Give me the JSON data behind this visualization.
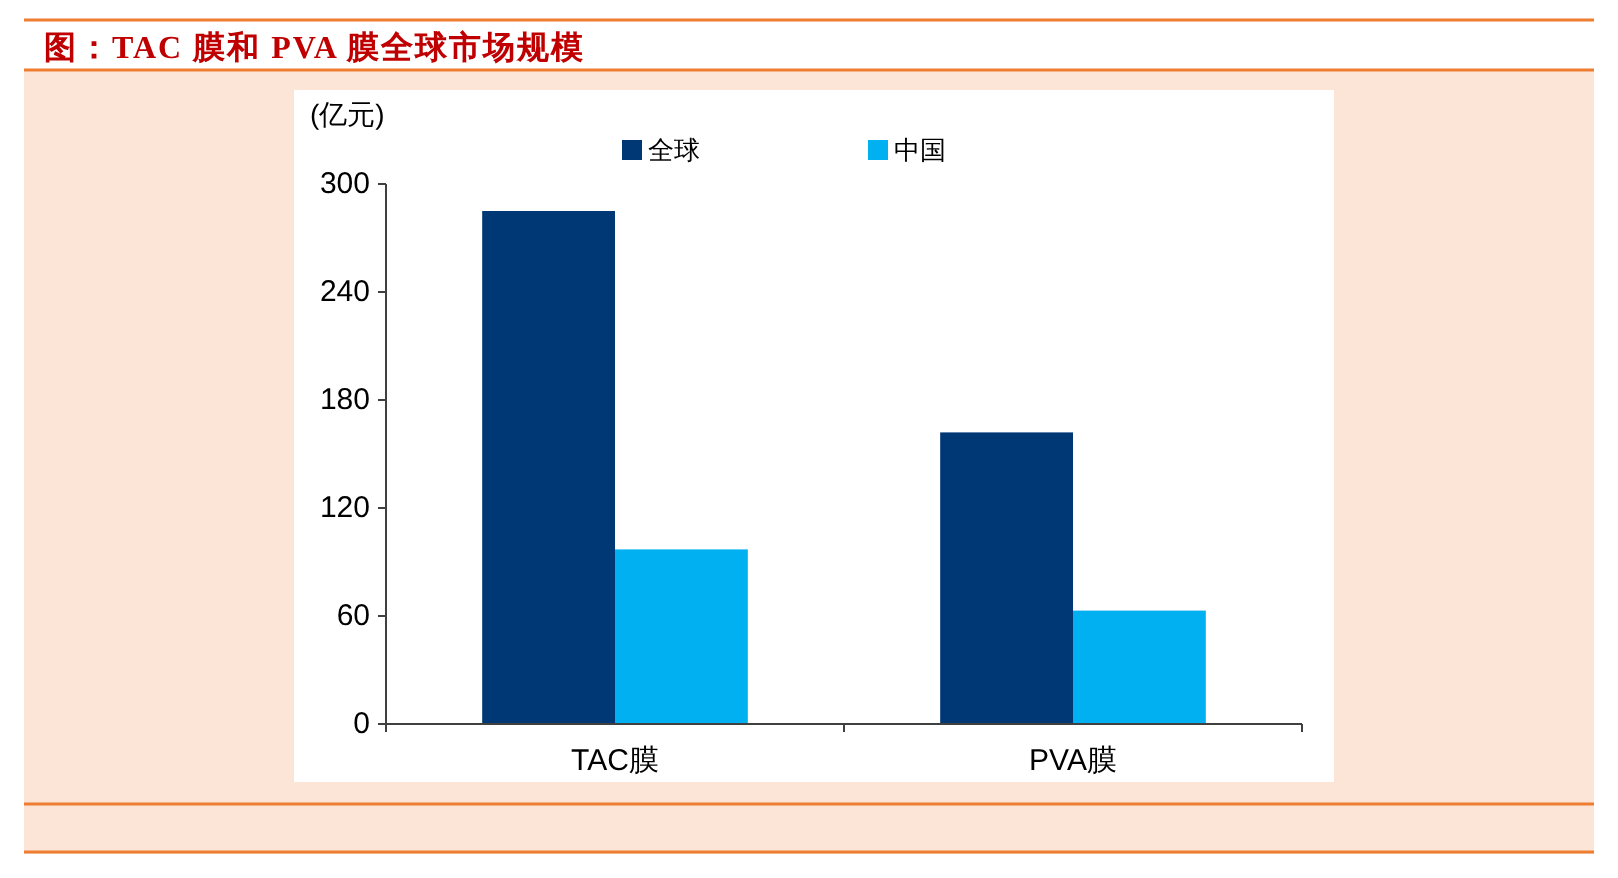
{
  "chart_data": {
    "type": "bar",
    "title": "图：TAC 膜和 PVA 膜全球市场规模",
    "ylabel": "(亿元)",
    "categories": [
      "TAC膜",
      "PVA膜"
    ],
    "series": [
      {
        "name": "全球",
        "color": "#003876",
        "values": [
          285,
          162
        ]
      },
      {
        "name": "中国",
        "color": "#00b0f0",
        "values": [
          97,
          63
        ]
      }
    ],
    "ylim": [
      0,
      300
    ],
    "yticks": [
      0,
      60,
      120,
      180,
      240,
      300
    ],
    "legend": "top",
    "grid": false
  }
}
